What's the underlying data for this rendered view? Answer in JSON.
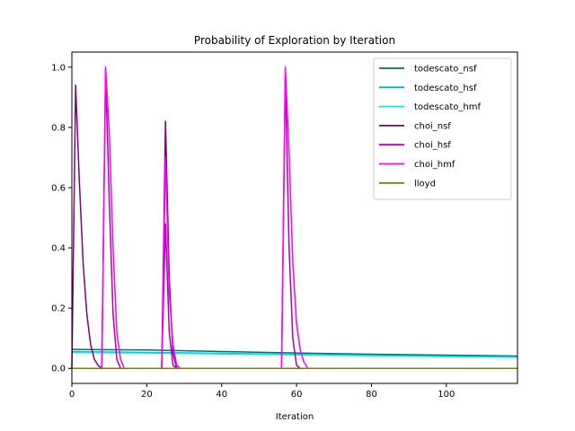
{
  "chart_data": {
    "type": "line",
    "title": "Probability of Exploration by Iteration",
    "xlabel": "Iteration",
    "ylabel": "",
    "xlim": [
      0,
      119
    ],
    "ylim": [
      -0.05,
      1.05
    ],
    "xticks": [
      "0",
      "20",
      "40",
      "60",
      "80",
      "100"
    ],
    "xtick_values": [
      0,
      20,
      40,
      60,
      80,
      100
    ],
    "yticks": [
      "0.0",
      "0.2",
      "0.4",
      "0.6",
      "0.8",
      "1.0"
    ],
    "ytick_values": [
      0.0,
      0.2,
      0.4,
      0.6,
      0.8,
      1.0
    ],
    "grid": false,
    "legend_position": "top-right",
    "series": [
      {
        "name": "todescato_nsf",
        "color": "#007070",
        "points": [
          [
            0,
            0.063
          ],
          [
            20,
            0.061
          ],
          [
            40,
            0.056
          ],
          [
            60,
            0.051
          ],
          [
            80,
            0.047
          ],
          [
            100,
            0.044
          ],
          [
            119,
            0.041
          ]
        ]
      },
      {
        "name": "todescato_hsf",
        "color": "#00b5b5",
        "points": [
          [
            0,
            0.055
          ],
          [
            20,
            0.053
          ],
          [
            40,
            0.05
          ],
          [
            60,
            0.046
          ],
          [
            80,
            0.043
          ],
          [
            100,
            0.04
          ],
          [
            119,
            0.038
          ]
        ]
      },
      {
        "name": "todescato_hmf",
        "color": "#00e8e8",
        "points": [
          [
            0,
            0.053
          ],
          [
            20,
            0.051
          ],
          [
            40,
            0.048
          ],
          [
            60,
            0.045
          ],
          [
            80,
            0.042
          ],
          [
            100,
            0.039
          ],
          [
            119,
            0.037
          ]
        ]
      },
      {
        "name": "choi_nsf",
        "color": "#800080",
        "points": [
          [
            0,
            0
          ],
          [
            1,
            0.94
          ],
          [
            2,
            0.62
          ],
          [
            3,
            0.35
          ],
          [
            4,
            0.18
          ],
          [
            5,
            0.08
          ],
          [
            6,
            0.03
          ],
          [
            7,
            0.01
          ],
          [
            8,
            0
          ],
          [
            24,
            0
          ],
          [
            25,
            0.82
          ],
          [
            26,
            0.3
          ],
          [
            27,
            0.05
          ],
          [
            28,
            0
          ],
          [
            119,
            0
          ]
        ]
      },
      {
        "name": "choi_hsf",
        "color": "#b000b0",
        "points": [
          [
            0,
            0
          ],
          [
            8,
            0
          ],
          [
            9,
            0.99
          ],
          [
            10,
            0.55
          ],
          [
            11,
            0.18
          ],
          [
            12,
            0.03
          ],
          [
            13,
            0
          ],
          [
            24,
            0
          ],
          [
            25,
            0.48
          ],
          [
            26,
            0.12
          ],
          [
            27,
            0.01
          ],
          [
            28,
            0
          ],
          [
            56,
            0
          ],
          [
            57,
            0.97
          ],
          [
            58,
            0.4
          ],
          [
            59,
            0.1
          ],
          [
            60,
            0.01
          ],
          [
            61,
            0
          ],
          [
            119,
            0
          ]
        ]
      },
      {
        "name": "choi_hmf",
        "color": "#ff00ff",
        "points": [
          [
            0,
            0
          ],
          [
            8,
            0
          ],
          [
            9,
            1.0
          ],
          [
            10,
            0.78
          ],
          [
            11,
            0.4
          ],
          [
            12,
            0.12
          ],
          [
            13,
            0.03
          ],
          [
            14,
            0
          ],
          [
            24,
            0
          ],
          [
            25,
            0.7
          ],
          [
            26,
            0.25
          ],
          [
            27,
            0.08
          ],
          [
            28,
            0.01
          ],
          [
            29,
            0
          ],
          [
            56,
            0
          ],
          [
            57,
            1.0
          ],
          [
            58,
            0.72
          ],
          [
            59,
            0.35
          ],
          [
            60,
            0.15
          ],
          [
            61,
            0.06
          ],
          [
            62,
            0.02
          ],
          [
            63,
            0
          ],
          [
            119,
            0
          ]
        ]
      },
      {
        "name": "lloyd",
        "color": "#808000",
        "points": [
          [
            0,
            0
          ],
          [
            119,
            0
          ]
        ]
      }
    ]
  }
}
